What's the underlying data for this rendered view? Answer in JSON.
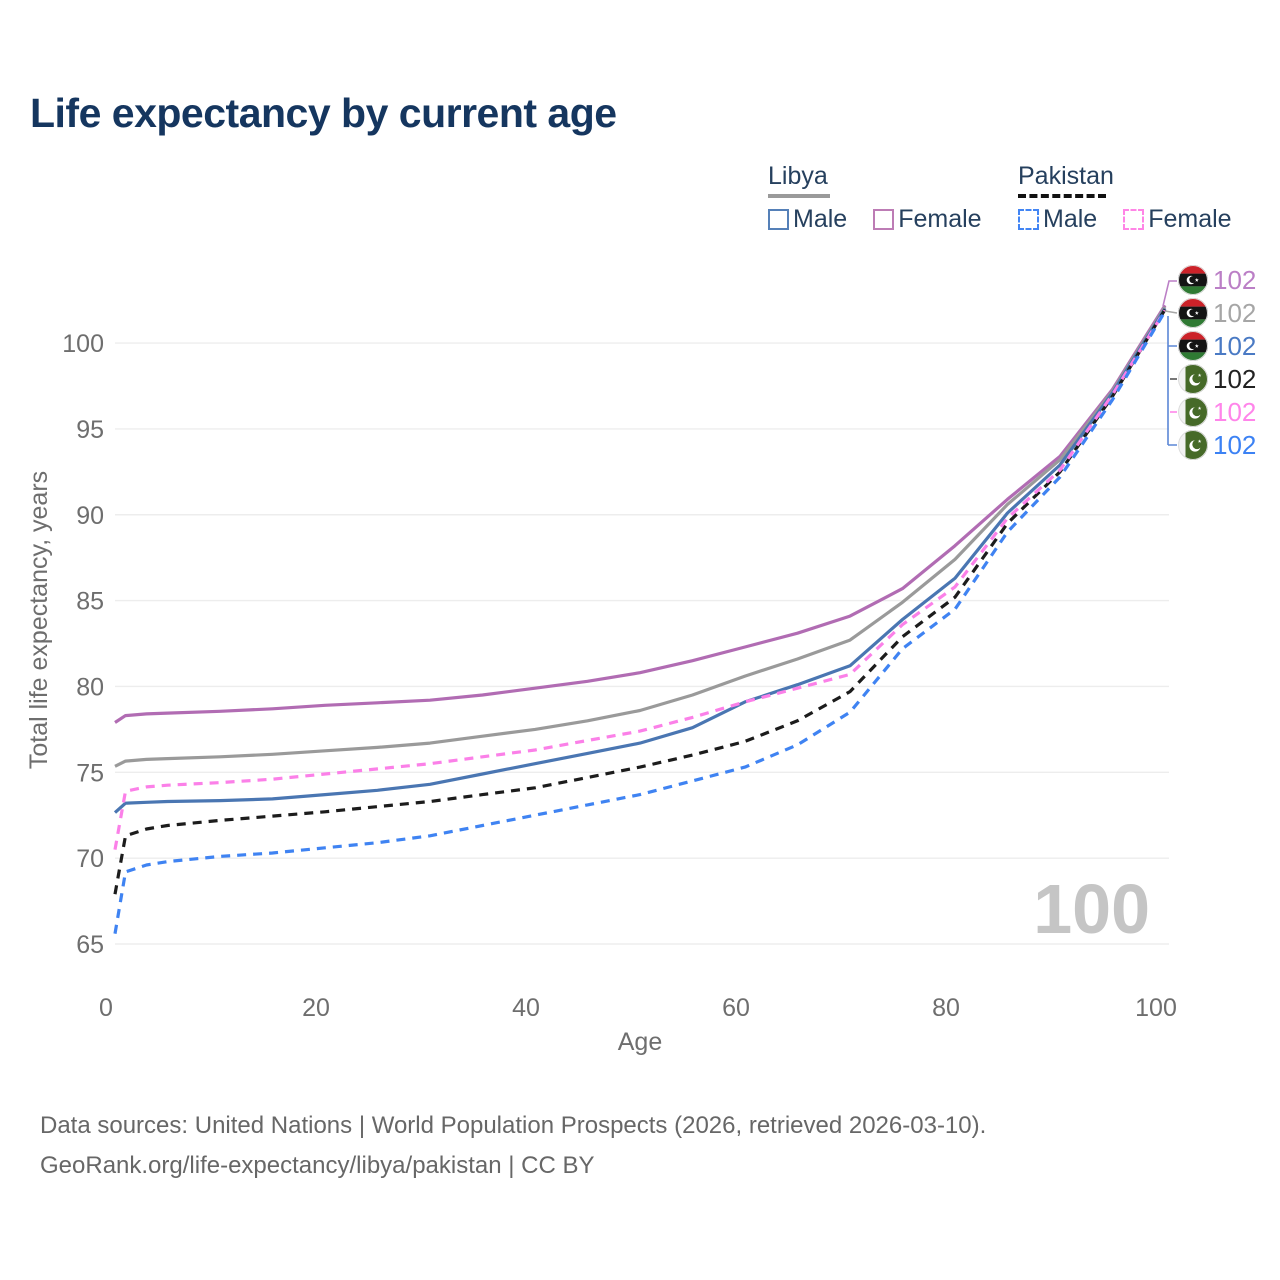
{
  "title": "Life expectancy by current age",
  "age_indicator": "100",
  "legend": {
    "groups": [
      {
        "label": "Libya",
        "style": "solid",
        "items": [
          {
            "label": "Male",
            "color_key": "libya_male"
          },
          {
            "label": "Female",
            "color_key": "libya_female"
          }
        ]
      },
      {
        "label": "Pakistan",
        "style": "dashed",
        "items": [
          {
            "label": "Male",
            "color_key": "pakistan_male"
          },
          {
            "label": "Female",
            "color_key": "pakistan_female"
          }
        ]
      }
    ]
  },
  "colors": {
    "libya_male": "#5580b8",
    "libya_female": "#bd7cb5",
    "pakistan_male": "#4285f4",
    "pakistan_female": "#ff85e6",
    "title_navy": "#15365f",
    "tick_gray": "#6e6e6e",
    "gridline": "#ededed",
    "big_age_gray": "#c5c5c5"
  },
  "end_labels": [
    {
      "flag": "libya",
      "series": "Libya Female",
      "value": "102",
      "color": "#bb7fc6"
    },
    {
      "flag": "libya",
      "series": "Libya Both sexes",
      "value": "102",
      "color": "#a6a6a6"
    },
    {
      "flag": "libya",
      "series": "Libya Male",
      "value": "102",
      "color": "#4a7ac4"
    },
    {
      "flag": "pakistan",
      "series": "Pakistan Both sexes",
      "value": "102",
      "color": "#222222"
    },
    {
      "flag": "pakistan",
      "series": "Pakistan Female",
      "value": "102",
      "color": "#ff85ea"
    },
    {
      "flag": "pakistan",
      "series": "Pakistan Male",
      "value": "102",
      "color": "#3c82f4"
    }
  ],
  "footer": {
    "line1": "Data sources: United Nations | World Population Prospects (2026, retrieved 2026-03-10).",
    "line2": "GeoRank.org/life-expectancy/libya/pakistan | CC BY"
  },
  "chart_data": {
    "type": "line",
    "title": "Life expectancy by current age",
    "xlabel": "Age",
    "ylabel": "Total life expectancy, years",
    "xlim": [
      0,
      100
    ],
    "ylim": [
      65,
      103
    ],
    "x_ticks": [
      0,
      20,
      40,
      60,
      80,
      100
    ],
    "y_ticks": [
      65,
      70,
      75,
      80,
      85,
      90,
      95,
      100
    ],
    "grid": "horizontal",
    "legend_position": "top-right",
    "x": [
      0,
      1,
      3,
      5,
      10,
      15,
      20,
      25,
      30,
      35,
      40,
      45,
      50,
      55,
      60,
      65,
      70,
      75,
      80,
      85,
      90,
      95,
      100
    ],
    "series": [
      {
        "name": "Libya Female",
        "country": "Libya",
        "sex": "Female",
        "style": "solid",
        "color": "#b16cb3",
        "values": [
          77.9,
          78.3,
          78.4,
          78.45,
          78.55,
          78.7,
          78.9,
          79.05,
          79.2,
          79.5,
          79.9,
          80.3,
          80.8,
          81.5,
          82.3,
          83.1,
          84.1,
          85.7,
          88.2,
          90.9,
          93.4,
          97.3,
          102.2
        ]
      },
      {
        "name": "Libya Both sexes",
        "country": "Libya",
        "sex": "Both",
        "style": "solid",
        "color": "#9a9a9a",
        "values": [
          75.35,
          75.65,
          75.75,
          75.8,
          75.9,
          76.05,
          76.25,
          76.45,
          76.7,
          77.1,
          77.5,
          78.0,
          78.6,
          79.5,
          80.6,
          81.6,
          82.7,
          84.9,
          87.4,
          90.6,
          93.2,
          97.2,
          102.1
        ]
      },
      {
        "name": "Libya Male",
        "country": "Libya",
        "sex": "Male",
        "style": "solid",
        "color": "#4a76b2",
        "values": [
          72.65,
          73.2,
          73.25,
          73.3,
          73.35,
          73.45,
          73.7,
          73.95,
          74.3,
          74.9,
          75.5,
          76.1,
          76.7,
          77.6,
          79.1,
          80.1,
          81.2,
          83.9,
          86.3,
          90.1,
          92.9,
          97.1,
          102.0
        ]
      },
      {
        "name": "Pakistan Both sexes",
        "country": "Pakistan",
        "sex": "Both",
        "style": "dashed",
        "color": "#1c1c1c",
        "values": [
          67.9,
          71.3,
          71.7,
          71.9,
          72.2,
          72.45,
          72.7,
          73.0,
          73.3,
          73.7,
          74.1,
          74.7,
          75.3,
          76.0,
          76.8,
          78.0,
          79.7,
          82.9,
          85.2,
          89.5,
          92.5,
          96.9,
          101.95
        ]
      },
      {
        "name": "Pakistan Female",
        "country": "Pakistan",
        "sex": "Female",
        "style": "dashed",
        "color": "#fb80e8",
        "values": [
          70.5,
          73.9,
          74.15,
          74.25,
          74.4,
          74.6,
          74.9,
          75.2,
          75.5,
          75.9,
          76.3,
          76.85,
          77.4,
          78.2,
          79.1,
          79.9,
          80.7,
          83.6,
          85.8,
          89.8,
          92.6,
          97.0,
          101.9
        ]
      },
      {
        "name": "Pakistan Male",
        "country": "Pakistan",
        "sex": "Male",
        "style": "dashed",
        "color": "#3f83f2",
        "values": [
          65.6,
          69.2,
          69.6,
          69.8,
          70.1,
          70.3,
          70.6,
          70.9,
          71.3,
          71.9,
          72.5,
          73.1,
          73.7,
          74.5,
          75.3,
          76.6,
          78.5,
          82.2,
          84.5,
          89.0,
          92.2,
          96.7,
          101.85
        ]
      }
    ]
  }
}
